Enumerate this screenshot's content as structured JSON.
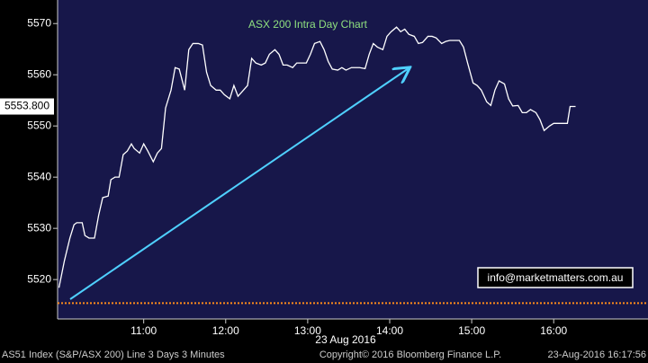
{
  "chart_data": {
    "type": "line",
    "title": "ASX 200 Intra Day Chart",
    "xlabel": "23 Aug 2016",
    "footer_left": "AS51 Index (S&P/ASX 200) Line 3 Days 3 Minutes",
    "footer_center": "Copyright© 2016 Bloomberg Finance L.P.",
    "footer_right": "23-Aug-2016 16:17:56",
    "annotation": "info@marketmatters.com.au",
    "last_price": {
      "value": 5553.8,
      "label": "5553.800"
    },
    "reference_line": {
      "value": 5515.4,
      "color": "#ff8c1a"
    },
    "ylim": [
      5512.3,
      5574.6
    ],
    "yticks": [
      5520,
      5530,
      5540,
      5550,
      5560,
      5570
    ],
    "xlim": [
      597,
      1029
    ],
    "xticks": [
      {
        "value": 660,
        "label": "11:00"
      },
      {
        "value": 720,
        "label": "12:00"
      },
      {
        "value": 780,
        "label": "13:00"
      },
      {
        "value": 840,
        "label": "14:00"
      },
      {
        "value": 900,
        "label": "15:00"
      },
      {
        "value": 960,
        "label": "16:00"
      }
    ],
    "grid": false,
    "series": [
      {
        "color": "#ffffff",
        "x": [
          598,
          602,
          606,
          609,
          611,
          615,
          617,
          620,
          624,
          627,
          630,
          634,
          636,
          639,
          642,
          645,
          648,
          651,
          653,
          657,
          660,
          663,
          667,
          670,
          673,
          676,
          680,
          683,
          686,
          690,
          693,
          696,
          700,
          703,
          706,
          709,
          713,
          716,
          719,
          723,
          726,
          729,
          733,
          736,
          739,
          742,
          746,
          749,
          752,
          756,
          759,
          762,
          765,
          769,
          772,
          775,
          779,
          782,
          785,
          789,
          792,
          795,
          798,
          802,
          805,
          808,
          812,
          815,
          818,
          822,
          825,
          828,
          831,
          835,
          838,
          841,
          845,
          848,
          851,
          854,
          858,
          861,
          864,
          868,
          871,
          874,
          878,
          881,
          884,
          887,
          891,
          894,
          897,
          901,
          904,
          907,
          911,
          914,
          917,
          920,
          924,
          927,
          930,
          934,
          937,
          940,
          943,
          947,
          950,
          953,
          957,
          960,
          963,
          967,
          970,
          972,
          976
        ],
        "values": [
          5518.4,
          5523.7,
          5528.1,
          5530.7,
          5531.1,
          5531.1,
          5528.6,
          5528.1,
          5528.1,
          5532.5,
          5536.0,
          5536.3,
          5539.5,
          5540.0,
          5540.0,
          5544.4,
          5545.1,
          5546.5,
          5545.6,
          5544.7,
          5546.5,
          5545.1,
          5543.0,
          5544.7,
          5545.6,
          5553.5,
          5557.0,
          5561.4,
          5561.1,
          5557.0,
          5564.9,
          5566.1,
          5566.1,
          5565.8,
          5560.5,
          5557.9,
          5557.0,
          5557.0,
          5556.1,
          5555.3,
          5557.9,
          5555.8,
          5557.0,
          5557.9,
          5563.2,
          5562.3,
          5561.9,
          5562.3,
          5564.0,
          5564.9,
          5564.0,
          5561.9,
          5561.9,
          5561.4,
          5562.3,
          5562.3,
          5562.3,
          5564.0,
          5566.1,
          5566.5,
          5564.9,
          5562.6,
          5561.1,
          5560.9,
          5561.4,
          5560.9,
          5561.4,
          5561.4,
          5561.4,
          5561.2,
          5564.0,
          5566.1,
          5565.4,
          5564.9,
          5567.5,
          5568.4,
          5569.3,
          5568.4,
          5568.9,
          5567.9,
          5567.5,
          5566.1,
          5566.3,
          5567.5,
          5567.5,
          5567.2,
          5566.1,
          5566.5,
          5566.7,
          5566.7,
          5566.7,
          5565.4,
          5562.3,
          5558.4,
          5557.9,
          5557.0,
          5554.7,
          5554.0,
          5557.0,
          5558.8,
          5558.2,
          5555.3,
          5553.9,
          5554.0,
          5552.6,
          5552.6,
          5553.2,
          5552.6,
          5551.2,
          5549.1,
          5550.0,
          5550.5,
          5550.5,
          5550.5,
          5550.5,
          5553.8,
          5553.8
        ]
      }
    ]
  }
}
